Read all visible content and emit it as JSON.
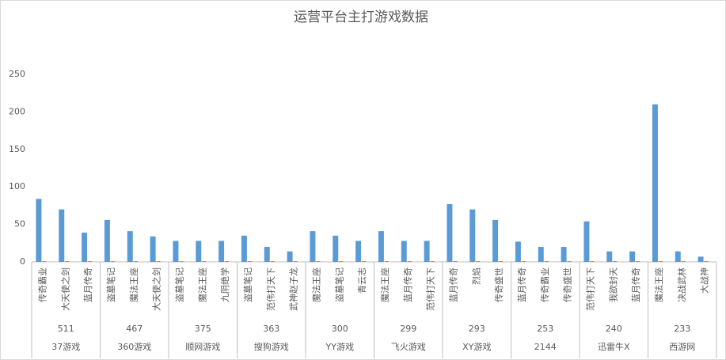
{
  "chart_data": {
    "type": "bar",
    "title": "运营平台主打游戏数据",
    "groups": [
      {
        "name": "37游戏",
        "total": 511,
        "categories": [
          "传奇霸业",
          "大天使之剑",
          "蓝月传奇"
        ]
      },
      {
        "name": "360游戏",
        "total": 467,
        "categories": [
          "盗墓笔记",
          "魔法王座",
          "大天使之剑"
        ]
      },
      {
        "name": "顺网游戏",
        "total": 375,
        "categories": [
          "盗墓笔记",
          "魔法王座",
          "九阴绝学"
        ]
      },
      {
        "name": "搜狗游戏",
        "total": 363,
        "categories": [
          "盗墓笔记",
          "范伟打天下",
          "武神赵子龙"
        ]
      },
      {
        "name": "YY游戏",
        "total": 300,
        "categories": [
          "魔法王座",
          "盗墓笔记",
          "青云志"
        ]
      },
      {
        "name": "飞火游戏",
        "total": 299,
        "categories": [
          "魔法王座",
          "蓝月传奇",
          "范伟打天下"
        ]
      },
      {
        "name": "XY游戏",
        "total": 293,
        "categories": [
          "蓝月传奇",
          "烈焰",
          "传奇盛世"
        ]
      },
      {
        "name": "2144",
        "total": 253,
        "categories": [
          "蓝月传奇",
          "传奇霸业",
          "传奇盛世"
        ]
      },
      {
        "name": "迅雷牛X",
        "total": 240,
        "categories": [
          "范伟打天下",
          "我欲封天",
          "蓝月传奇"
        ]
      },
      {
        "name": "西游网",
        "total": 233,
        "categories": [
          "魔法王座",
          "决战武林",
          "大战神"
        ]
      }
    ],
    "series": [
      {
        "color": "#5b9bd5",
        "values": [
          84,
          70,
          39,
          56,
          41,
          34,
          28,
          28,
          28,
          35,
          20,
          14,
          41,
          35,
          28,
          41,
          28,
          28,
          77,
          70,
          56,
          27,
          20,
          20,
          54,
          14,
          14,
          210,
          14,
          7
        ]
      },
      {
        "color": "#ed7d31",
        "values": [
          1,
          1,
          1,
          1,
          1,
          1,
          1,
          1,
          1,
          1,
          1,
          1,
          1,
          1,
          1,
          1,
          1,
          1,
          1,
          1,
          1,
          1,
          1,
          1,
          1,
          1,
          1,
          1,
          1,
          1
        ]
      }
    ],
    "ylim": [
      0,
      250
    ],
    "yticks": [
      0,
      50,
      100,
      150,
      200,
      250
    ],
    "grid": false
  }
}
